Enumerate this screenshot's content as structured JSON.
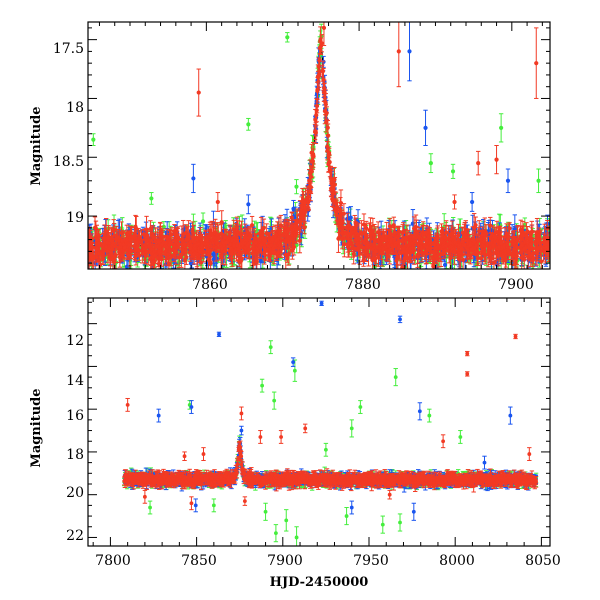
{
  "colors": {
    "blue": "#1a55f0",
    "green": "#44ee3c",
    "red": "#f23a24",
    "model": "#000000"
  },
  "chart_data": [
    {
      "type": "scatter",
      "title": "",
      "xlabel": "",
      "ylabel": "Magnitude",
      "xlim": [
        7844.5,
        7905
      ],
      "ylim": [
        19.45,
        17.35
      ],
      "y_inverted": true,
      "xticks": [
        7860,
        7880,
        7900
      ],
      "xtick_labels": [
        "7860",
        "7880",
        "7900"
      ],
      "yticks": [
        17.5,
        18,
        18.5,
        19
      ],
      "ytick_labels": [
        "17.5",
        "18",
        "18.5",
        "19"
      ],
      "baseline_magnitude": 19.25,
      "series": [
        {
          "name": "blue",
          "color_key": "blue",
          "outliers": [
            {
              "x": 7858.3,
              "y": 18.68,
              "err": 0.12
            },
            {
              "x": 7886.6,
              "y": 17.6,
              "err": 0.25
            },
            {
              "x": 7888.7,
              "y": 18.25,
              "err": 0.15
            },
            {
              "x": 7865.5,
              "y": 18.9,
              "err": 0.08
            },
            {
              "x": 7899.5,
              "y": 18.7,
              "err": 0.1
            },
            {
              "x": 7894.8,
              "y": 18.88,
              "err": 0.08
            }
          ]
        },
        {
          "name": "green",
          "color_key": "green",
          "outliers": [
            {
              "x": 7845.2,
              "y": 18.35,
              "err": 0.05
            },
            {
              "x": 7865.5,
              "y": 18.22,
              "err": 0.05
            },
            {
              "x": 7870.6,
              "y": 17.48,
              "err": 0.04
            },
            {
              "x": 7871.8,
              "y": 18.75,
              "err": 0.06
            },
            {
              "x": 7889.4,
              "y": 18.55,
              "err": 0.08
            },
            {
              "x": 7898.6,
              "y": 18.25,
              "err": 0.12
            },
            {
              "x": 7903.5,
              "y": 18.7,
              "err": 0.1
            },
            {
              "x": 7852.8,
              "y": 18.85,
              "err": 0.05
            },
            {
              "x": 7892.3,
              "y": 18.62,
              "err": 0.06
            }
          ]
        },
        {
          "name": "red",
          "color_key": "red",
          "outliers": [
            {
              "x": 7859.0,
              "y": 17.95,
              "err": 0.2
            },
            {
              "x": 7875.4,
              "y": 17.4,
              "err": 0.15
            },
            {
              "x": 7885.2,
              "y": 17.6,
              "err": 0.3
            },
            {
              "x": 7895.6,
              "y": 18.55,
              "err": 0.1
            },
            {
              "x": 7903.2,
              "y": 17.7,
              "err": 0.3
            },
            {
              "x": 7898.0,
              "y": 18.52,
              "err": 0.12
            },
            {
              "x": 7861.5,
              "y": 18.88,
              "err": 0.08
            },
            {
              "x": 7892.5,
              "y": 18.88,
              "err": 0.06
            }
          ]
        }
      ],
      "peak": {
        "x": 7875,
        "y": 17.55
      }
    },
    {
      "type": "scatter",
      "title": "",
      "xlabel": "HJD-2450000",
      "ylabel": "Magnitude",
      "xlim": [
        7787,
        8055
      ],
      "ylim": [
        22.4,
        10.8
      ],
      "y_inverted": true,
      "xticks": [
        7800,
        7850,
        7900,
        7950,
        8000,
        8050
      ],
      "xtick_labels": [
        "7800",
        "7850",
        "7900",
        "7950",
        "8000",
        "8050"
      ],
      "yticks": [
        12,
        14,
        16,
        18,
        20,
        22
      ],
      "ytick_labels": [
        "12",
        "14",
        "16",
        "18",
        "20",
        "22"
      ],
      "baseline_magnitude": 19.3,
      "data_range": [
        7808,
        8047
      ],
      "series": [
        {
          "name": "blue",
          "color_key": "blue",
          "outliers": [
            {
              "x": 7922.5,
              "y": 11.05,
              "err": 0.1
            },
            {
              "x": 7968,
              "y": 11.8,
              "err": 0.15
            },
            {
              "x": 7863,
              "y": 12.5,
              "err": 0.1
            },
            {
              "x": 7906,
              "y": 13.8,
              "err": 0.2
            },
            {
              "x": 7828,
              "y": 16.3,
              "err": 0.3
            },
            {
              "x": 7847,
              "y": 15.9,
              "err": 0.3
            },
            {
              "x": 7979.5,
              "y": 16.1,
              "err": 0.4
            },
            {
              "x": 7976,
              "y": 20.8,
              "err": 0.4
            },
            {
              "x": 8032,
              "y": 16.3,
              "err": 0.4
            },
            {
              "x": 7940,
              "y": 20.6,
              "err": 0.3
            },
            {
              "x": 7876,
              "y": 17.0,
              "err": 0.2
            },
            {
              "x": 7849.5,
              "y": 20.5,
              "err": 0.3
            },
            {
              "x": 8017,
              "y": 18.5,
              "err": 0.3
            }
          ]
        },
        {
          "name": "green",
          "color_key": "green",
          "outliers": [
            {
              "x": 7893,
              "y": 13.1,
              "err": 0.3
            },
            {
              "x": 7907,
              "y": 14.2,
              "err": 0.5
            },
            {
              "x": 7888,
              "y": 14.9,
              "err": 0.3
            },
            {
              "x": 7965.5,
              "y": 14.5,
              "err": 0.4
            },
            {
              "x": 7895,
              "y": 15.6,
              "err": 0.4
            },
            {
              "x": 7945,
              "y": 15.9,
              "err": 0.3
            },
            {
              "x": 7940,
              "y": 16.9,
              "err": 0.4
            },
            {
              "x": 7985,
              "y": 16.3,
              "err": 0.3
            },
            {
              "x": 7896,
              "y": 21.8,
              "err": 0.4
            },
            {
              "x": 7902,
              "y": 21.2,
              "err": 0.5
            },
            {
              "x": 7890,
              "y": 20.8,
              "err": 0.4
            },
            {
              "x": 7908,
              "y": 22.0,
              "err": 0.5
            },
            {
              "x": 7937,
              "y": 21.0,
              "err": 0.4
            },
            {
              "x": 7958,
              "y": 21.4,
              "err": 0.4
            },
            {
              "x": 7968,
              "y": 21.3,
              "err": 0.4
            },
            {
              "x": 7823,
              "y": 20.6,
              "err": 0.3
            },
            {
              "x": 7846,
              "y": 15.8,
              "err": 0.2
            },
            {
              "x": 8003,
              "y": 17.3,
              "err": 0.3
            },
            {
              "x": 7860,
              "y": 20.5,
              "err": 0.3
            },
            {
              "x": 7925,
              "y": 17.9,
              "err": 0.3
            }
          ]
        },
        {
          "name": "red",
          "color_key": "red",
          "outliers": [
            {
              "x": 8007,
              "y": 13.4,
              "err": 0.1
            },
            {
              "x": 8007,
              "y": 14.35,
              "err": 0.1
            },
            {
              "x": 8035,
              "y": 12.6,
              "err": 0.1
            },
            {
              "x": 7810,
              "y": 15.8,
              "err": 0.3
            },
            {
              "x": 7876,
              "y": 16.2,
              "err": 0.3
            },
            {
              "x": 7887,
              "y": 17.3,
              "err": 0.3
            },
            {
              "x": 7913,
              "y": 16.9,
              "err": 0.2
            },
            {
              "x": 7899,
              "y": 17.3,
              "err": 0.3
            },
            {
              "x": 7854,
              "y": 18.1,
              "err": 0.3
            },
            {
              "x": 7843,
              "y": 18.2,
              "err": 0.2
            },
            {
              "x": 7820,
              "y": 20.1,
              "err": 0.3
            },
            {
              "x": 7878,
              "y": 20.3,
              "err": 0.2
            },
            {
              "x": 7993,
              "y": 17.5,
              "err": 0.3
            },
            {
              "x": 8043,
              "y": 18.1,
              "err": 0.3
            },
            {
              "x": 7962,
              "y": 20.0,
              "err": 0.2
            },
            {
              "x": 7847,
              "y": 20.4,
              "err": 0.3
            }
          ]
        }
      ],
      "peak": {
        "x": 7875,
        "y": 17.55
      }
    }
  ]
}
